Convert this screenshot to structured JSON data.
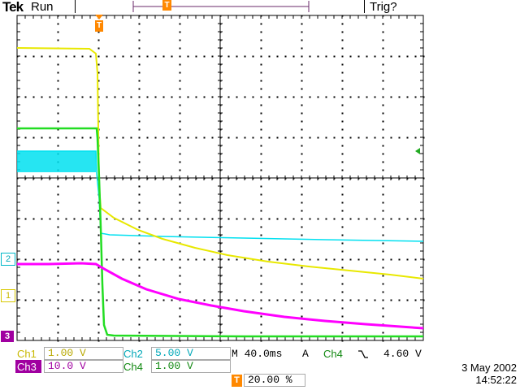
{
  "header": {
    "brand": "Tek",
    "run_status": "Run",
    "trigger_status": "Trig?",
    "trigger_position_marker": "T"
  },
  "markers": {
    "ch2_marker": "2",
    "ch1_marker": "1",
    "ch3_marker": "3",
    "trigger_marker": "T",
    "trigger_level_icon": "left-arrow-icon"
  },
  "readout": {
    "ch1_label": "Ch1",
    "ch1_scale": "1.00 V",
    "ch2_label": "Ch2",
    "ch2_scale": "5.00 V",
    "ch3_label": "Ch3",
    "ch3_scale": "10.0 V",
    "ch4_label": "Ch4",
    "ch4_scale": "1.00 V",
    "timebase": "M 40.0ms",
    "trigger_mode": "A",
    "trigger_source": "Ch4",
    "trigger_slope_icon": "falling-edge-icon",
    "trigger_level": "4.60 V",
    "trigger_position_icon": "T",
    "trigger_position": "20.00 %",
    "date": "3 May 2002",
    "time": "14:52:22"
  },
  "colors": {
    "ch1": "#e8e800",
    "ch2": "#00e0f0",
    "ch3": "#ff00ff",
    "ch4": "#22dd22",
    "trigger": "#ff8800",
    "grid": "#000000"
  }
}
